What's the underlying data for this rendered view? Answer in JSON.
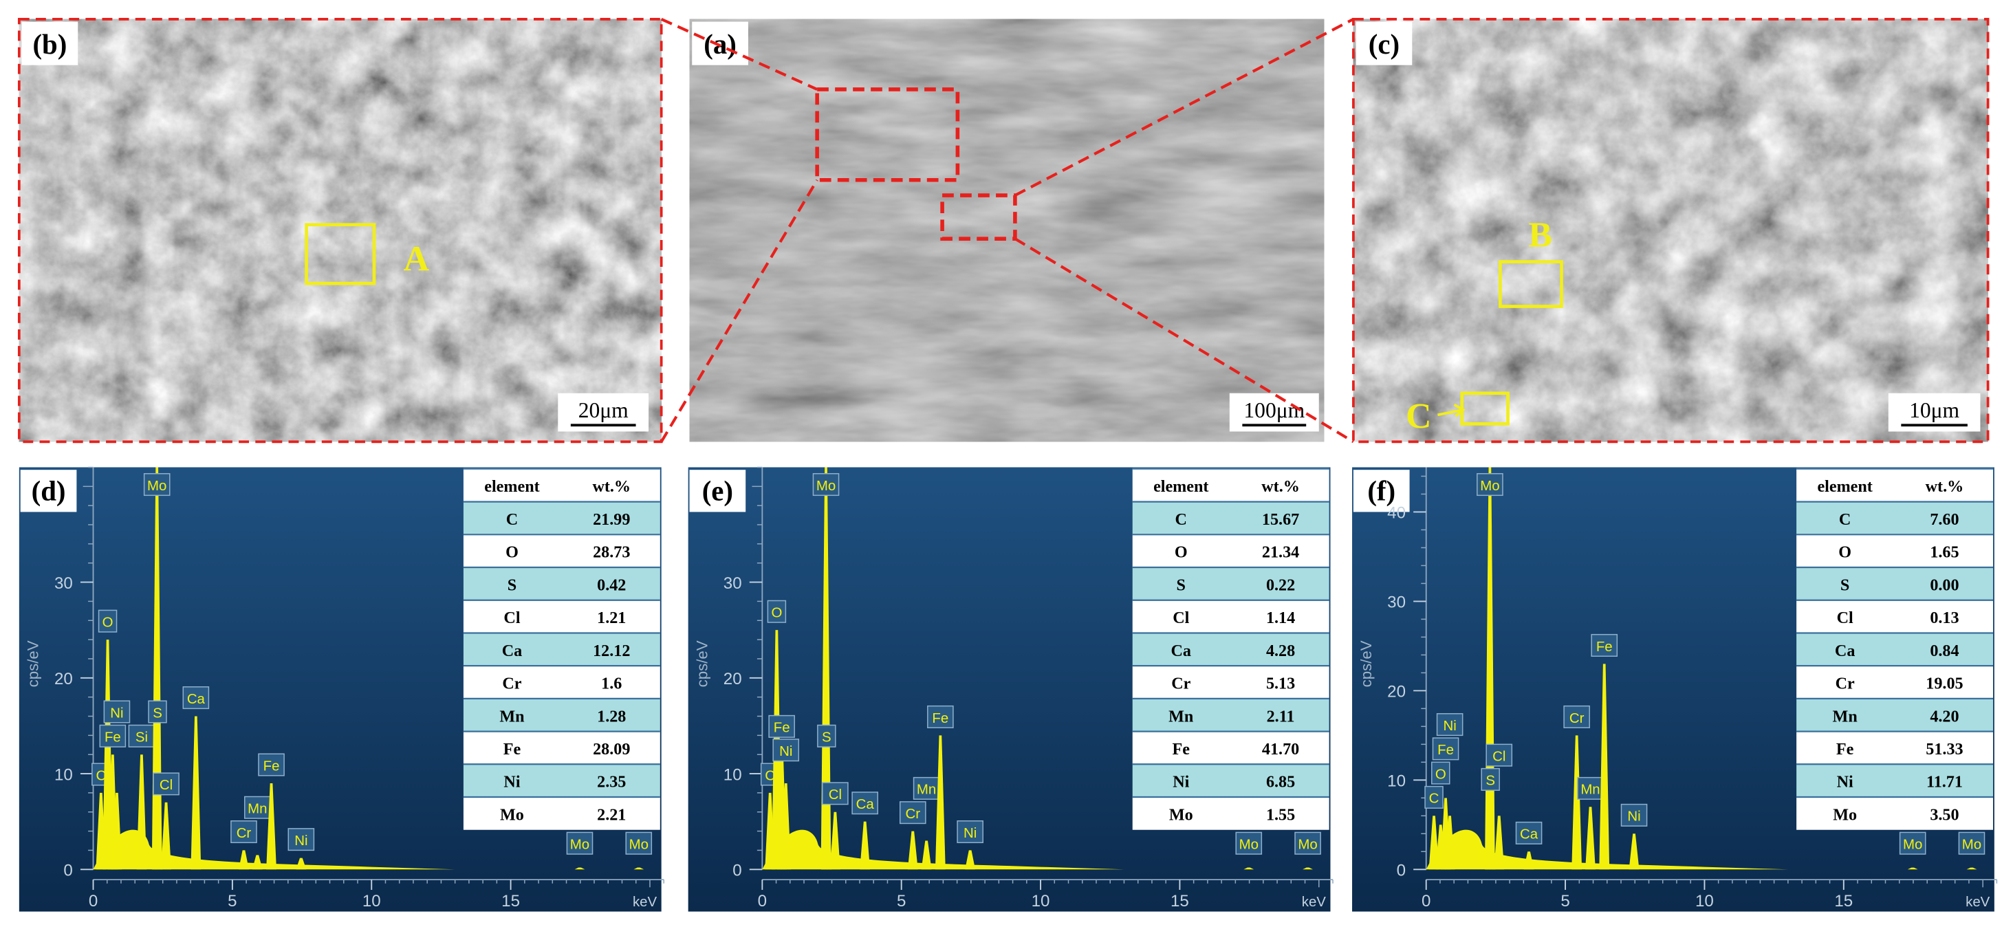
{
  "sem_images": [
    {
      "label": "(b)",
      "scale_bar": "20μm",
      "regions": [
        "A"
      ]
    },
    {
      "label": "(a)",
      "scale_bar": "100μm",
      "regions": []
    },
    {
      "label": "(c)",
      "scale_bar": "10μm",
      "regions": [
        "B",
        "C"
      ]
    }
  ],
  "eds": [
    {
      "label": "(d)",
      "table": {
        "header": [
          "element",
          "wt.%"
        ],
        "rows": [
          [
            "C",
            "21.99"
          ],
          [
            "O",
            "28.73"
          ],
          [
            "S",
            "0.42"
          ],
          [
            "Cl",
            "1.21"
          ],
          [
            "Ca",
            "12.12"
          ],
          [
            "Cr",
            "1.6"
          ],
          [
            "Mn",
            "1.28"
          ],
          [
            "Fe",
            "28.09"
          ],
          [
            "Ni",
            "2.35"
          ],
          [
            "Mo",
            "2.21"
          ]
        ]
      },
      "spectrum": {
        "y_axis_label": "cps/eV",
        "x_axis_label": "keV",
        "xlim": [
          0,
          20.5
        ],
        "xticks": [
          0,
          5,
          10,
          15
        ],
        "ylim": [
          0,
          42
        ],
        "yticks": [
          0,
          10,
          20,
          30
        ],
        "peaks": [
          {
            "label": "C",
            "keV": 0.28,
            "cps": 8
          },
          {
            "label": "O",
            "keV": 0.52,
            "cps": 24
          },
          {
            "label": "Fe",
            "keV": 0.7,
            "cps": 12
          },
          {
            "label": "Ni",
            "keV": 0.85,
            "cps": 8
          },
          {
            "label": "Si",
            "keV": 1.74,
            "cps": 12
          },
          {
            "label": "Mo",
            "keV": 2.29,
            "cps": 42
          },
          {
            "label": "S",
            "keV": 2.31,
            "cps": 14
          },
          {
            "label": "Cl",
            "keV": 2.62,
            "cps": 7
          },
          {
            "label": "Ca",
            "keV": 3.69,
            "cps": 16
          },
          {
            "label": "Cr",
            "keV": 5.41,
            "cps": 2
          },
          {
            "label": "Mn",
            "keV": 5.9,
            "cps": 1.5
          },
          {
            "label": "Fe",
            "keV": 6.4,
            "cps": 9
          },
          {
            "label": "Ni",
            "keV": 7.47,
            "cps": 1.2
          },
          {
            "label": "Mo",
            "keV": 17.48,
            "cps": 0.2
          },
          {
            "label": "Mo",
            "keV": 19.6,
            "cps": 0.2
          }
        ]
      }
    },
    {
      "label": "(e)",
      "table": {
        "header": [
          "element",
          "wt.%"
        ],
        "rows": [
          [
            "C",
            "15.67"
          ],
          [
            "O",
            "21.34"
          ],
          [
            "S",
            "0.22"
          ],
          [
            "Cl",
            "1.14"
          ],
          [
            "Ca",
            "4.28"
          ],
          [
            "Cr",
            "5.13"
          ],
          [
            "Mn",
            "2.11"
          ],
          [
            "Fe",
            "41.70"
          ],
          [
            "Ni",
            "6.85"
          ],
          [
            "Mo",
            "1.55"
          ]
        ]
      },
      "spectrum": {
        "y_axis_label": "cps/eV",
        "x_axis_label": "keV",
        "xlim": [
          0,
          20.5
        ],
        "xticks": [
          0,
          5,
          10,
          15
        ],
        "ylim": [
          0,
          42
        ],
        "yticks": [
          0,
          10,
          20,
          30
        ],
        "peaks": [
          {
            "label": "C",
            "keV": 0.28,
            "cps": 8
          },
          {
            "label": "O",
            "keV": 0.52,
            "cps": 25
          },
          {
            "label": "Fe",
            "keV": 0.7,
            "cps": 13
          },
          {
            "label": "Ni",
            "keV": 0.85,
            "cps": 9
          },
          {
            "label": "Mo",
            "keV": 2.29,
            "cps": 42
          },
          {
            "label": "S",
            "keV": 2.31,
            "cps": 12
          },
          {
            "label": "Cl",
            "keV": 2.62,
            "cps": 6
          },
          {
            "label": "Ca",
            "keV": 3.69,
            "cps": 5
          },
          {
            "label": "Cr",
            "keV": 5.41,
            "cps": 4
          },
          {
            "label": "Mn",
            "keV": 5.9,
            "cps": 3
          },
          {
            "label": "Fe",
            "keV": 6.4,
            "cps": 14
          },
          {
            "label": "Ni",
            "keV": 7.47,
            "cps": 2
          },
          {
            "label": "Mo",
            "keV": 17.48,
            "cps": 0.2
          },
          {
            "label": "Mo",
            "keV": 19.6,
            "cps": 0.2
          }
        ]
      }
    },
    {
      "label": "(f)",
      "table": {
        "header": [
          "element",
          "wt.%"
        ],
        "rows": [
          [
            "C",
            "7.60"
          ],
          [
            "O",
            "1.65"
          ],
          [
            "S",
            "0.00"
          ],
          [
            "Cl",
            "0.13"
          ],
          [
            "Ca",
            "0.84"
          ],
          [
            "Cr",
            "19.05"
          ],
          [
            "Mn",
            "4.20"
          ],
          [
            "Fe",
            "51.33"
          ],
          [
            "Ni",
            "11.71"
          ],
          [
            "Mo",
            "3.50"
          ]
        ]
      },
      "spectrum": {
        "y_axis_label": "cps/eV",
        "x_axis_label": "keV",
        "xlim": [
          0,
          20.5
        ],
        "xticks": [
          0,
          5,
          10,
          15
        ],
        "ylim": [
          0,
          45
        ],
        "yticks": [
          0,
          10,
          20,
          30,
          40
        ],
        "peaks": [
          {
            "label": "C",
            "keV": 0.28,
            "cps": 6
          },
          {
            "label": "O",
            "keV": 0.52,
            "cps": 5
          },
          {
            "label": "Fe",
            "keV": 0.7,
            "cps": 8
          },
          {
            "label": "Ni",
            "keV": 0.85,
            "cps": 6
          },
          {
            "label": "Mo",
            "keV": 2.29,
            "cps": 45
          },
          {
            "label": "S",
            "keV": 2.31,
            "cps": 8
          },
          {
            "label": "Cl",
            "keV": 2.62,
            "cps": 6
          },
          {
            "label": "Ca",
            "keV": 3.69,
            "cps": 2
          },
          {
            "label": "Cr",
            "keV": 5.41,
            "cps": 15
          },
          {
            "label": "Mn",
            "keV": 5.9,
            "cps": 7
          },
          {
            "label": "Fe",
            "keV": 6.4,
            "cps": 23
          },
          {
            "label": "Ni",
            "keV": 7.47,
            "cps": 4
          },
          {
            "label": "Mo",
            "keV": 17.48,
            "cps": 0.2
          },
          {
            "label": "Mo",
            "keV": 19.6,
            "cps": 0.2
          }
        ]
      }
    }
  ]
}
